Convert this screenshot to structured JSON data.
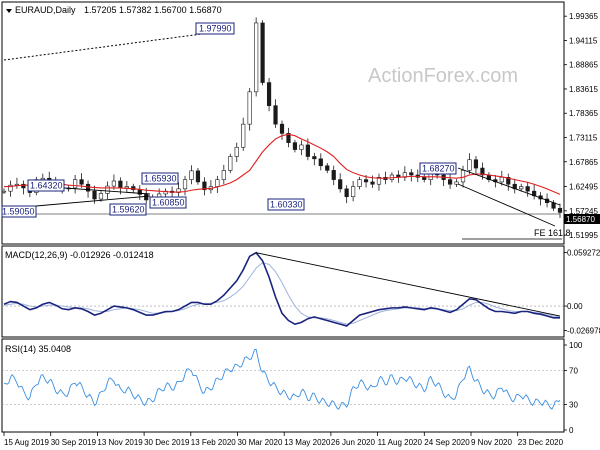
{
  "header": {
    "symbol": "EURAUD,Daily",
    "ohlc": "1.57205 1.57382 1.56700 1.56870",
    "arrow": "triangle-down-icon"
  },
  "watermark": "ActionForex.com",
  "colors": {
    "candles": "#1a1a1a",
    "ma": "#e02020",
    "macd": "#1a237e",
    "signal": "#9fb3d9",
    "rsi": "#3b8fe0",
    "trendline": "#000000",
    "box_border": "#1a237e",
    "box_text": "#1a237e",
    "watermark": "#c8c8c8"
  },
  "price_axis": {
    "ticks": [
      "1.99365",
      "1.94115",
      "1.88865",
      "1.83615",
      "1.78365",
      "1.73115",
      "1.67865",
      "1.62495",
      "1.57245",
      "1.51995"
    ],
    "current_price": "1.56870"
  },
  "macd_axis": {
    "ticks": [
      "0.059272",
      "0.00",
      "-0.026978"
    ],
    "title": "MACD(12,26,9) -0.012926 -0.012418"
  },
  "rsi_axis": {
    "ticks": [
      "100",
      "70",
      "30",
      "0"
    ],
    "title": "RSI(14) 35.0408"
  },
  "x_axis": {
    "labels": [
      "15 Aug 2019",
      "30 Sep 2019",
      "13 Nov 2019",
      "30 Dec 2019",
      "13 Feb 2020",
      "30 Mar 2020",
      "13 May 2020",
      "26 Jun 2020",
      "11 Aug 2020",
      "24 Sep 2020",
      "9 Nov 2020",
      "23 Dec 2020"
    ]
  },
  "annotations": {
    "high_2020": "1.97990",
    "swing_1": "1.64320",
    "swing_2": "1.59050",
    "swing_3": "1.59620",
    "swing_4": "1.60850",
    "swing_5": "1.65930",
    "swing_6": "1.60330",
    "swing_7": "1.68270",
    "fe_label": "FE 161.8"
  },
  "chart_data": [
    {
      "type": "line",
      "name": "price",
      "title": "EURAUD,Daily",
      "ylim": [
        1.505,
        2.02
      ],
      "x_labels": [
        "15 Aug 2019",
        "30 Sep 2019",
        "13 Nov 2019",
        "30 Dec 2019",
        "13 Feb 2020",
        "30 Mar 2020",
        "13 May 2020",
        "26 Jun 2020",
        "11 Aug 2020",
        "24 Sep 2020",
        "9 Nov 2020",
        "23 Dec 2020"
      ],
      "series": [
        {
          "name": "price",
          "values": [
            1.615,
            1.628,
            1.63,
            1.622,
            1.612,
            1.64,
            1.643,
            1.638,
            1.628,
            1.62,
            1.622,
            1.64,
            1.63,
            1.615,
            1.598,
            1.61,
            1.626,
            1.637,
            1.622,
            1.625,
            1.618,
            1.608,
            1.596,
            1.6,
            1.609,
            1.615,
            1.612,
            1.62,
            1.64,
            1.659,
            1.635,
            1.618,
            1.625,
            1.64,
            1.66,
            1.69,
            1.71,
            1.76,
            1.83,
            1.979,
            1.85,
            1.8,
            1.76,
            1.74,
            1.72,
            1.705,
            1.715,
            1.69,
            1.685,
            1.67,
            1.66,
            1.64,
            1.62,
            1.603,
            1.625,
            1.64,
            1.635,
            1.63,
            1.645,
            1.64,
            1.65,
            1.645,
            1.655,
            1.65,
            1.645,
            1.64,
            1.655,
            1.65,
            1.64,
            1.63,
            1.635,
            1.66,
            1.683,
            1.665,
            1.65,
            1.64,
            1.635,
            1.645,
            1.63,
            1.62,
            1.625,
            1.615,
            1.605,
            1.598,
            1.59,
            1.578,
            1.569
          ]
        },
        {
          "name": "ma",
          "values": [
            1.625,
            1.625,
            1.627,
            1.628,
            1.628,
            1.629,
            1.63,
            1.63,
            1.631,
            1.63,
            1.628,
            1.627,
            1.626,
            1.624,
            1.623,
            1.622,
            1.622,
            1.622,
            1.622,
            1.621,
            1.62,
            1.619,
            1.617,
            1.616,
            1.615,
            1.614,
            1.613,
            1.613,
            1.614,
            1.617,
            1.619,
            1.62,
            1.621,
            1.624,
            1.628,
            1.633,
            1.64,
            1.65,
            1.66,
            1.68,
            1.7,
            1.715,
            1.728,
            1.735,
            1.738,
            1.735,
            1.728,
            1.722,
            1.715,
            1.708,
            1.7,
            1.69,
            1.675,
            1.662,
            1.655,
            1.65,
            1.646,
            1.644,
            1.643,
            1.643,
            1.644,
            1.645,
            1.646,
            1.647,
            1.647,
            1.646,
            1.646,
            1.646,
            1.645,
            1.644,
            1.643,
            1.645,
            1.65,
            1.652,
            1.652,
            1.65,
            1.648,
            1.646,
            1.643,
            1.64,
            1.637,
            1.634,
            1.63,
            1.625,
            1.62,
            1.614,
            1.608
          ]
        }
      ],
      "annotations": [
        "1.97990",
        "1.64320",
        "1.59050",
        "1.59620",
        "1.60850",
        "1.65930",
        "1.60330",
        "1.68270",
        "FE 161.8"
      ]
    },
    {
      "type": "line",
      "name": "macd",
      "title": "MACD(12,26,9) -0.012926 -0.012418",
      "ylim": [
        -0.032,
        0.062
      ],
      "series": [
        {
          "name": "macd",
          "values": [
            0.002,
            0.005,
            0.004,
            0.0,
            -0.004,
            -0.002,
            0.002,
            0.004,
            0.001,
            -0.003,
            -0.004,
            -0.002,
            -0.003,
            -0.006,
            -0.01,
            -0.008,
            -0.004,
            0.0,
            -0.001,
            -0.002,
            -0.004,
            -0.007,
            -0.01,
            -0.01,
            -0.008,
            -0.006,
            -0.006,
            -0.004,
            0.0,
            0.004,
            0.004,
            0.002,
            0.002,
            0.006,
            0.012,
            0.02,
            0.028,
            0.04,
            0.055,
            0.059,
            0.05,
            0.032,
            0.01,
            -0.008,
            -0.016,
            -0.02,
            -0.018,
            -0.014,
            -0.012,
            -0.014,
            -0.016,
            -0.018,
            -0.02,
            -0.022,
            -0.016,
            -0.01,
            -0.008,
            -0.006,
            -0.004,
            -0.003,
            -0.002,
            -0.002,
            -0.001,
            -0.002,
            -0.003,
            -0.004,
            -0.002,
            -0.003,
            -0.005,
            -0.007,
            -0.004,
            0.002,
            0.008,
            0.007,
            0.002,
            -0.003,
            -0.006,
            -0.006,
            -0.007,
            -0.008,
            -0.006,
            -0.006,
            -0.008,
            -0.009,
            -0.011,
            -0.013,
            -0.013
          ]
        },
        {
          "name": "signal",
          "values": [
            0.001,
            0.002,
            0.003,
            0.002,
            0.0,
            -0.001,
            0.0,
            0.001,
            0.001,
            0.0,
            -0.001,
            -0.002,
            -0.002,
            -0.003,
            -0.005,
            -0.006,
            -0.006,
            -0.004,
            -0.003,
            -0.002,
            -0.003,
            -0.004,
            -0.006,
            -0.008,
            -0.008,
            -0.007,
            -0.006,
            -0.005,
            -0.003,
            0.0,
            0.002,
            0.003,
            0.003,
            0.004,
            0.006,
            0.01,
            0.015,
            0.022,
            0.032,
            0.042,
            0.048,
            0.046,
            0.038,
            0.026,
            0.012,
            0.0,
            -0.008,
            -0.012,
            -0.013,
            -0.013,
            -0.014,
            -0.016,
            -0.018,
            -0.02,
            -0.019,
            -0.016,
            -0.013,
            -0.01,
            -0.007,
            -0.005,
            -0.004,
            -0.003,
            -0.002,
            -0.002,
            -0.002,
            -0.003,
            -0.003,
            -0.003,
            -0.004,
            -0.005,
            -0.005,
            -0.003,
            0.001,
            0.004,
            0.004,
            0.002,
            -0.001,
            -0.003,
            -0.005,
            -0.006,
            -0.006,
            -0.006,
            -0.007,
            -0.008,
            -0.009,
            -0.011,
            -0.012
          ]
        }
      ]
    },
    {
      "type": "line",
      "name": "rsi",
      "title": "RSI(14) 35.0408",
      "ylim": [
        0,
        100
      ],
      "series": [
        {
          "name": "rsi",
          "values": [
            52,
            62,
            58,
            44,
            38,
            56,
            62,
            58,
            48,
            42,
            44,
            58,
            50,
            40,
            32,
            42,
            56,
            60,
            46,
            48,
            42,
            36,
            32,
            36,
            46,
            52,
            50,
            54,
            66,
            72,
            56,
            44,
            50,
            58,
            66,
            72,
            74,
            80,
            86,
            92,
            68,
            58,
            50,
            44,
            40,
            38,
            46,
            38,
            40,
            34,
            32,
            30,
            28,
            30,
            48,
            56,
            52,
            48,
            60,
            56,
            62,
            56,
            62,
            58,
            52,
            48,
            60,
            54,
            44,
            36,
            42,
            62,
            72,
            58,
            48,
            42,
            40,
            52,
            40,
            36,
            42,
            36,
            32,
            34,
            30,
            28,
            35
          ]
        }
      ]
    }
  ]
}
